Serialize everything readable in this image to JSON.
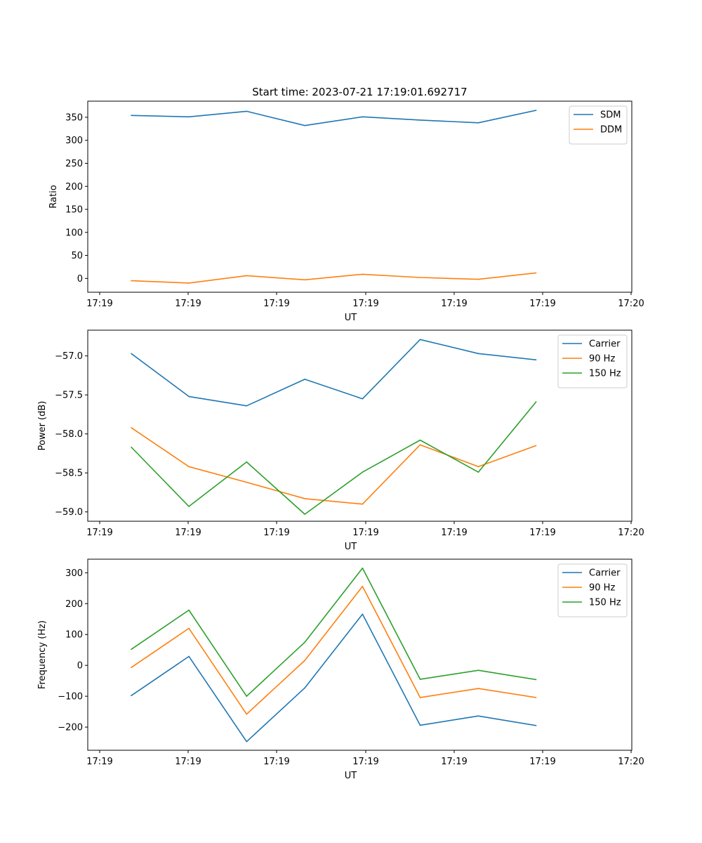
{
  "chart_data": [
    {
      "type": "line",
      "title": "Start time: 2023-07-21 17:19:01.692717",
      "xlabel": "UT",
      "ylabel": "Ratio",
      "xticklabels": [
        "17:19",
        "17:19",
        "17:19",
        "17:19",
        "17:19",
        "17:19",
        "17:20"
      ],
      "yticks": [
        0,
        50,
        100,
        150,
        200,
        250,
        300,
        350
      ],
      "xlim": [
        0,
        1
      ],
      "ylim": [
        -30,
        385
      ],
      "legend": "top-right",
      "x": [
        0.08,
        0.186,
        0.292,
        0.399,
        0.505,
        0.611,
        0.718,
        0.824
      ],
      "series": [
        {
          "name": "SDM",
          "color": "#1f77b4",
          "values": [
            354,
            351,
            363,
            332,
            351,
            344,
            338,
            365
          ]
        },
        {
          "name": "DDM",
          "color": "#ff7f0e",
          "values": [
            -5,
            -10,
            6,
            -3,
            9,
            2,
            -2,
            12
          ]
        }
      ]
    },
    {
      "type": "line",
      "title": "",
      "xlabel": "UT",
      "ylabel": "Power (dB)",
      "xticklabels": [
        "17:19",
        "17:19",
        "17:19",
        "17:19",
        "17:19",
        "17:19",
        "17:20"
      ],
      "yticks": [
        -57.0,
        -57.5,
        -58.0,
        -58.5,
        -59.0
      ],
      "yticklabels": [
        "−57.0",
        "−57.5",
        "−58.0",
        "−58.5",
        "−59.0"
      ],
      "xlim": [
        0,
        1
      ],
      "ylim": [
        -59.12,
        -56.67
      ],
      "legend": "top-right",
      "x": [
        0.08,
        0.186,
        0.292,
        0.399,
        0.505,
        0.611,
        0.718,
        0.824
      ],
      "series": [
        {
          "name": "Carrier",
          "color": "#1f77b4",
          "values": [
            -56.97,
            -57.52,
            -57.64,
            -57.3,
            -57.55,
            -56.79,
            -56.97,
            -57.05
          ]
        },
        {
          "name": "90 Hz",
          "color": "#ff7f0e",
          "values": [
            -57.92,
            -58.42,
            -58.62,
            -58.83,
            -58.9,
            -58.14,
            -58.42,
            -58.15
          ]
        },
        {
          "name": "150 Hz",
          "color": "#2ca02c",
          "values": [
            -58.17,
            -58.93,
            -58.36,
            -59.03,
            -58.49,
            -58.08,
            -58.49,
            -57.59
          ]
        }
      ]
    },
    {
      "type": "line",
      "title": "",
      "xlabel": "UT",
      "ylabel": "Frequency (Hz)",
      "xticklabels": [
        "17:19",
        "17:19",
        "17:19",
        "17:19",
        "17:19",
        "17:19",
        "17:20"
      ],
      "yticks": [
        -200,
        -100,
        0,
        100,
        200,
        300
      ],
      "yticklabels": [
        "−200",
        "−100",
        "0",
        "100",
        "200",
        "300"
      ],
      "xlim": [
        0,
        1
      ],
      "ylim": [
        -275,
        344
      ],
      "legend": "top-right",
      "x": [
        0.08,
        0.186,
        0.292,
        0.399,
        0.505,
        0.611,
        0.718,
        0.824
      ],
      "series": [
        {
          "name": "Carrier",
          "color": "#1f77b4",
          "values": [
            -98,
            29,
            -247,
            -73,
            166,
            -194,
            -164,
            -195
          ]
        },
        {
          "name": "90 Hz",
          "color": "#ff7f0e",
          "values": [
            -7,
            120,
            -158,
            16,
            256,
            -104,
            -75,
            -104
          ]
        },
        {
          "name": "150 Hz",
          "color": "#2ca02c",
          "values": [
            52,
            179,
            -100,
            75,
            315,
            -45,
            -16,
            -46
          ]
        }
      ]
    }
  ]
}
